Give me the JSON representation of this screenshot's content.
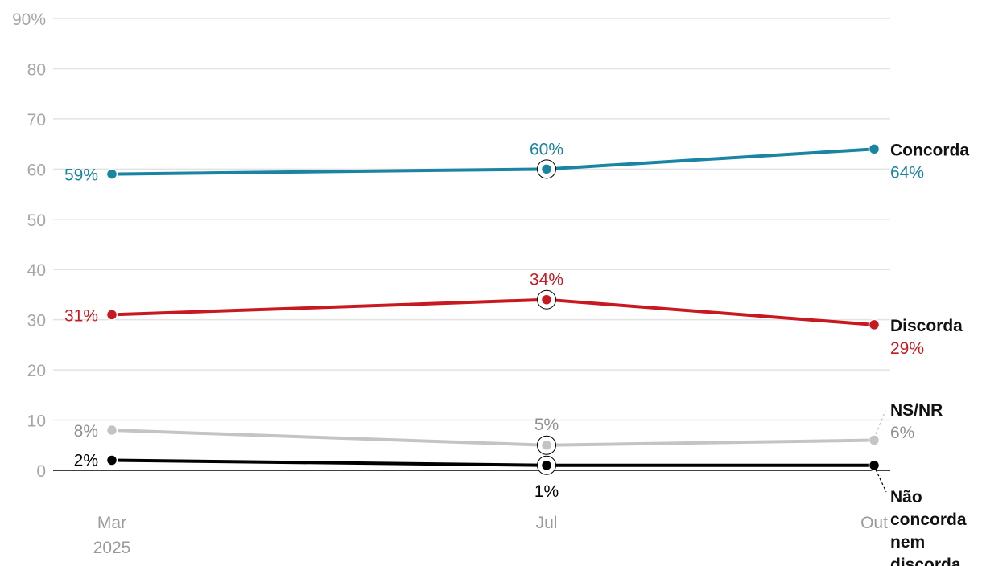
{
  "chart_data": {
    "type": "line",
    "x": [
      "Mar",
      "Jul",
      "Out"
    ],
    "x_sub": [
      "2025",
      "",
      ""
    ],
    "ylim": [
      0,
      90
    ],
    "yticks": [
      0,
      10,
      20,
      30,
      40,
      50,
      60,
      70,
      80,
      90
    ],
    "ytick_labels": [
      "0",
      "10",
      "20",
      "30",
      "40",
      "50",
      "60",
      "70",
      "80",
      "90%"
    ],
    "grid": true,
    "highlight_index": 1,
    "series": [
      {
        "name": "Concorda",
        "name_lines": [
          "Concorda"
        ],
        "color": "#1a84a3",
        "values": [
          59,
          60,
          64
        ],
        "labels": [
          "59%",
          "60%",
          "64%"
        ]
      },
      {
        "name": "Discorda",
        "name_lines": [
          "Discorda"
        ],
        "color": "#c7191f",
        "values": [
          31,
          34,
          29
        ],
        "labels": [
          "31%",
          "34%",
          "29%"
        ]
      },
      {
        "name": "NS/NR",
        "name_lines": [
          "NS/NR"
        ],
        "color": "#c4c4c4",
        "label_color": "#8f8f8f",
        "values": [
          8,
          5,
          6
        ],
        "labels": [
          "8%",
          "5%",
          "6%"
        ]
      },
      {
        "name": "Não concorda nem discorda",
        "name_lines": [
          "Não",
          "concorda",
          "nem",
          "discorda"
        ],
        "color": "#000000",
        "values": [
          2,
          1,
          1
        ],
        "labels": [
          "2%",
          "1%",
          ""
        ]
      }
    ]
  }
}
